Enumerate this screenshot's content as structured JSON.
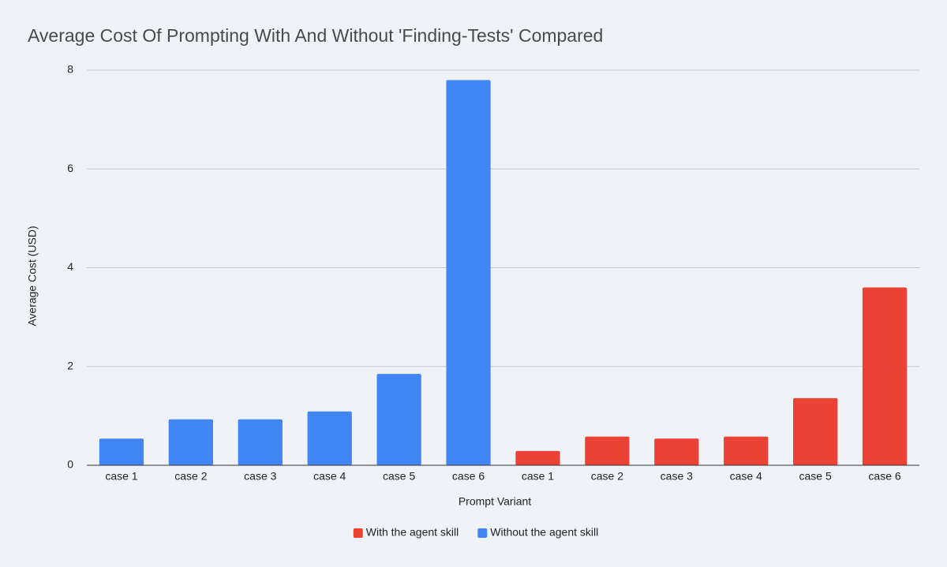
{
  "chart_data": {
    "type": "bar",
    "title": "Average Cost Of Prompting With And Without 'Finding-Tests' Compared",
    "x_label": "Prompt Variant",
    "y_label": "Average Cost (USD)",
    "categories": [
      "case 1",
      "case 2",
      "case 3",
      "case 4",
      "case 5",
      "case 6",
      "case 1",
      "case 2",
      "case 3",
      "case 4",
      "case 5",
      "case 6"
    ],
    "series": [
      {
        "name": "With the agent skill",
        "color": "#ea4335",
        "values": [
          null,
          null,
          null,
          null,
          null,
          null,
          0.29,
          0.58,
          0.54,
          0.58,
          1.36,
          3.6
        ]
      },
      {
        "name": "Without the agent skill",
        "color": "#4285f4",
        "values": [
          0.54,
          0.93,
          0.93,
          1.09,
          1.85,
          7.8,
          null,
          null,
          null,
          null,
          null,
          null
        ]
      }
    ],
    "ylim": [
      0,
      8
    ],
    "yticks": [
      0,
      2,
      4,
      6,
      8
    ],
    "grid": true,
    "legend": "bottom"
  }
}
